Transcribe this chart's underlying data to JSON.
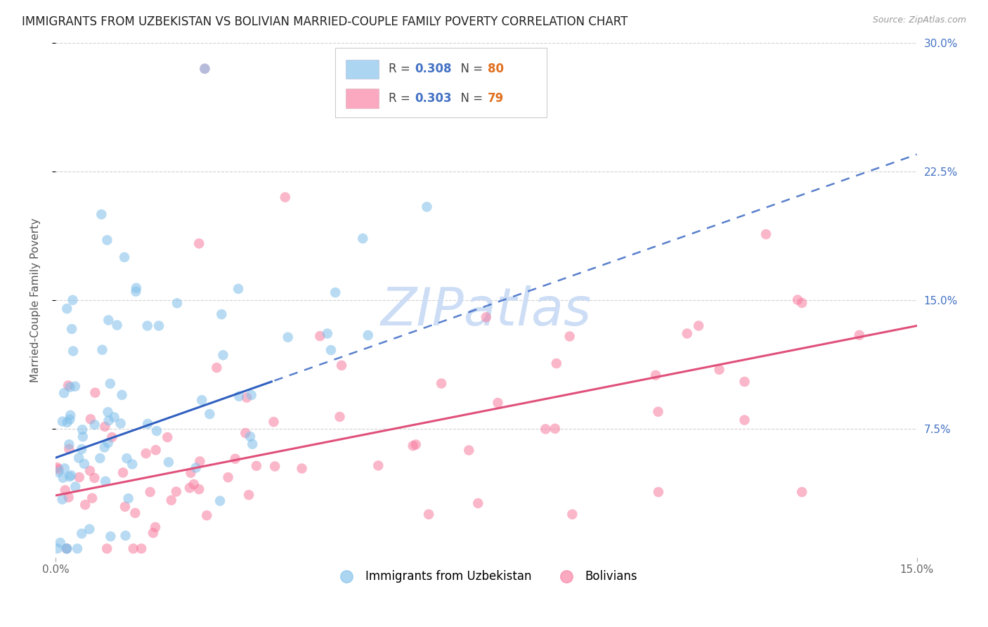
{
  "title": "IMMIGRANTS FROM UZBEKISTAN VS BOLIVIAN MARRIED-COUPLE FAMILY POVERTY CORRELATION CHART",
  "source": "Source: ZipAtlas.com",
  "ylabel_left": "Married-Couple Family Poverty",
  "series1_color": "#7fbfea",
  "series2_color": "#f87ca0",
  "trend1_color": "#3060c0",
  "trend2_color": "#e0507a",
  "background_color": "#ffffff",
  "watermark_color": "#ccddf5",
  "xlim": [
    0.0,
    0.15
  ],
  "ylim": [
    0.0,
    0.3
  ],
  "title_fontsize": 12,
  "axis_label_fontsize": 11,
  "tick_fontsize": 11,
  "right_tick_color": "#4472c4",
  "r1": "0.308",
  "n1": "80",
  "r2": "0.303",
  "n2": "79",
  "rn_color": "#4472c4",
  "n_color": "#e07020",
  "legend1_label": "Immigrants from Uzbekistan",
  "legend2_label": "Bolivians",
  "trend1_solid_xmax": 0.038,
  "trend1_intercept": 0.058,
  "trend1_slope": 1.45,
  "trend2_intercept": 0.034,
  "trend2_slope": 0.75
}
